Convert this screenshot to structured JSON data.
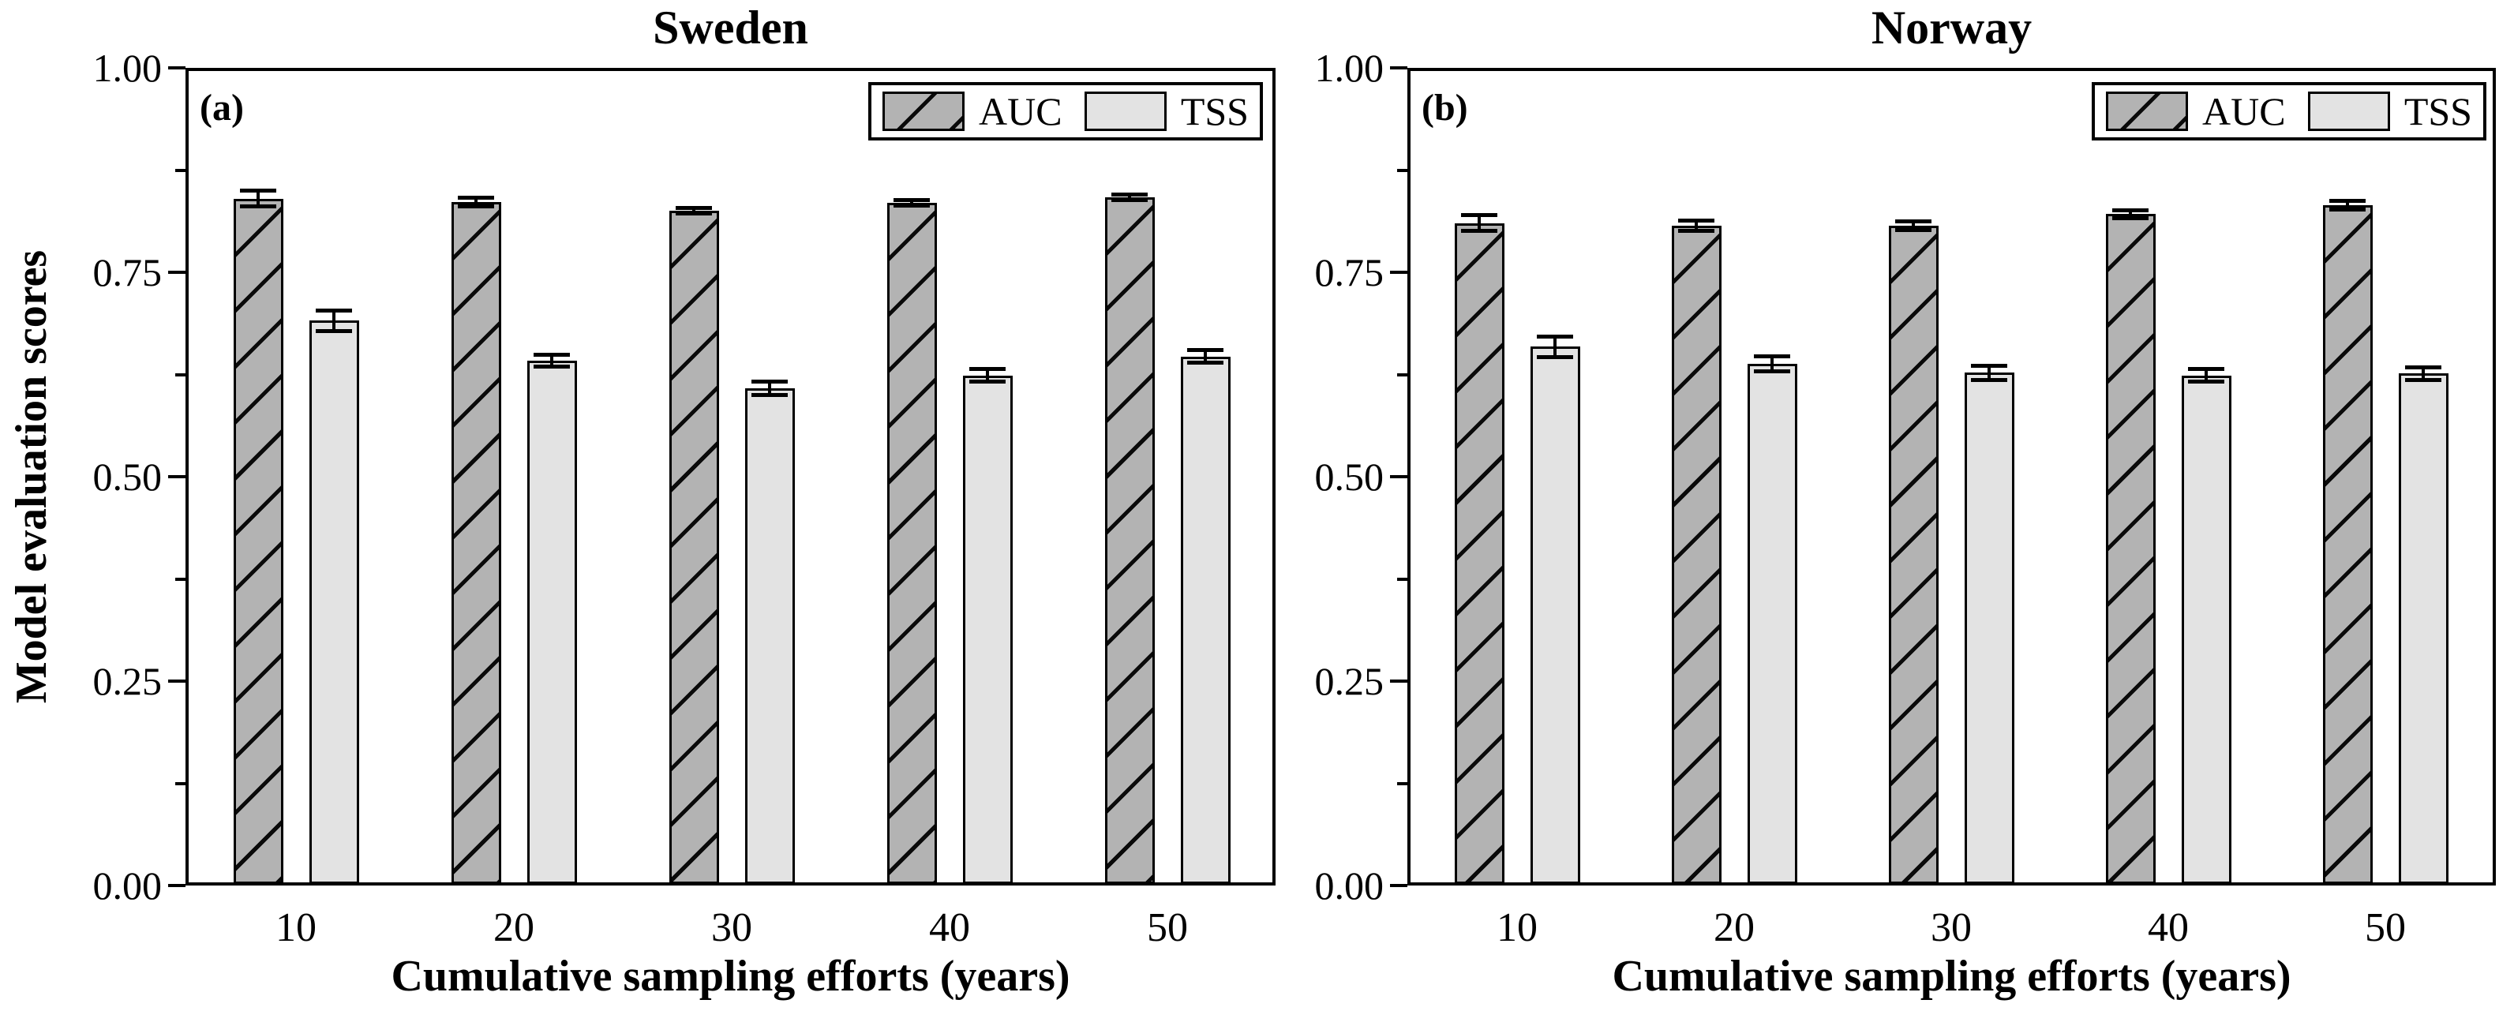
{
  "figure": {
    "y_axis_label": "Model evaluation scores",
    "x_axis_label": "Cumulative sampling efforts (years)",
    "y_ticks": [
      "1.00",
      "0.75",
      "0.50",
      "0.25",
      "0.00"
    ],
    "y_tick_values": [
      1.0,
      0.75,
      0.5,
      0.25,
      0.0
    ],
    "y_minor_tick_values": [
      0.875,
      0.625,
      0.375,
      0.125
    ],
    "colors": {
      "auc_fill": "#b3b3b3",
      "tss_fill": "#e3e3e3",
      "hatch": "#0a0a0a",
      "axis": "#000000",
      "background": "#ffffff"
    }
  },
  "chart_data": [
    {
      "type": "bar",
      "panel_label": "(a)",
      "title": "Sweden",
      "xlabel": "Cumulative sampling efforts (years)",
      "ylabel": "Model evaluation scores",
      "ylim": [
        0.0,
        1.0
      ],
      "grid": false,
      "legend_position": "top-right-inside",
      "categories": [
        "10",
        "20",
        "30",
        "40",
        "50"
      ],
      "series": [
        {
          "name": "AUC",
          "style": "hatched",
          "values": [
            0.84,
            0.836,
            0.825,
            0.835,
            0.842
          ],
          "errors": [
            0.01,
            0.006,
            0.004,
            0.004,
            0.004
          ]
        },
        {
          "name": "TSS",
          "style": "plain",
          "values": [
            0.691,
            0.642,
            0.608,
            0.624,
            0.647
          ],
          "errors": [
            0.013,
            0.008,
            0.009,
            0.008,
            0.008
          ]
        }
      ]
    },
    {
      "type": "bar",
      "panel_label": "(b)",
      "title": "Norway",
      "xlabel": "Cumulative sampling efforts (years)",
      "ylabel": "Model evaluation scores",
      "ylim": [
        0.0,
        1.0
      ],
      "grid": false,
      "legend_position": "top-right-inside",
      "categories": [
        "10",
        "20",
        "30",
        "40",
        "50"
      ],
      "series": [
        {
          "name": "AUC",
          "style": "hatched",
          "values": [
            0.81,
            0.807,
            0.807,
            0.821,
            0.832
          ],
          "errors": [
            0.01,
            0.007,
            0.006,
            0.005,
            0.006
          ]
        },
        {
          "name": "TSS",
          "style": "plain",
          "values": [
            0.659,
            0.638,
            0.627,
            0.624,
            0.626
          ],
          "errors": [
            0.013,
            0.01,
            0.009,
            0.008,
            0.008
          ]
        }
      ]
    }
  ]
}
